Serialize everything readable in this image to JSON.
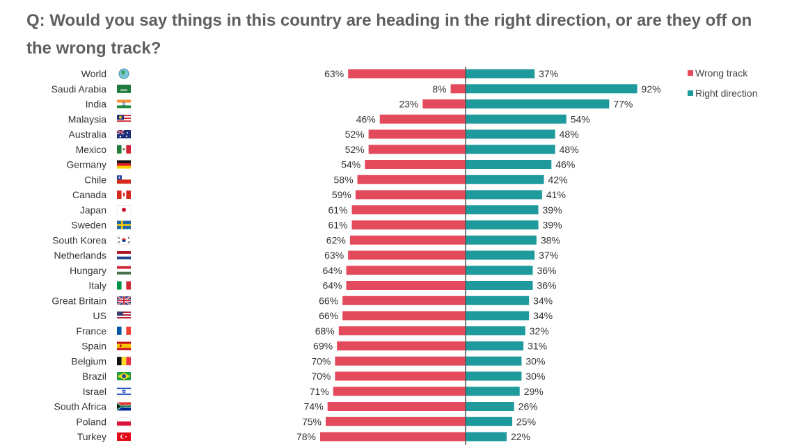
{
  "title": "Q: Would you say things in this country are heading in the right direction, or are they off on the wrong track?",
  "colors": {
    "wrong": "#e34b5c",
    "right": "#1e9a9c",
    "axis": "#555555",
    "text": "#333333"
  },
  "chart_data": {
    "type": "bar",
    "orientation": "horizontal-diverging",
    "title": "Q: Would you say things in this country are heading in the right direction, or are they off on the wrong track?",
    "legend_position": "top-right",
    "value_suffix": "%",
    "categories": [
      "World",
      "Saudi Arabia",
      "India",
      "Malaysia",
      "Australia",
      "Mexico",
      "Germany",
      "Chile",
      "Canada",
      "Japan",
      "Sweden",
      "South Korea",
      "Netherlands",
      "Hungary",
      "Italy",
      "Great Britain",
      "US",
      "France",
      "Spain",
      "Belgium",
      "Brazil",
      "Israel",
      "South Africa",
      "Poland",
      "Turkey"
    ],
    "series": [
      {
        "name": "Wrong track",
        "direction": "left",
        "values": [
          63,
          8,
          23,
          46,
          52,
          52,
          54,
          58,
          59,
          61,
          61,
          62,
          63,
          64,
          64,
          66,
          66,
          68,
          69,
          70,
          70,
          71,
          74,
          75,
          78
        ]
      },
      {
        "name": "Right direction",
        "direction": "right",
        "values": [
          37,
          92,
          77,
          54,
          48,
          48,
          46,
          42,
          41,
          39,
          39,
          38,
          37,
          36,
          36,
          34,
          34,
          32,
          31,
          30,
          30,
          29,
          26,
          25,
          22
        ]
      }
    ],
    "flag_icons": [
      "globe-icon",
      "flag-saudi-arabia-icon",
      "flag-india-icon",
      "flag-malaysia-icon",
      "flag-australia-icon",
      "flag-mexico-icon",
      "flag-germany-icon",
      "flag-chile-icon",
      "flag-canada-icon",
      "flag-japan-icon",
      "flag-sweden-icon",
      "flag-south-korea-icon",
      "flag-netherlands-icon",
      "flag-hungary-icon",
      "flag-italy-icon",
      "flag-great-britain-icon",
      "flag-us-icon",
      "flag-france-icon",
      "flag-spain-icon",
      "flag-belgium-icon",
      "flag-brazil-icon",
      "flag-israel-icon",
      "flag-south-africa-icon",
      "flag-poland-icon",
      "flag-turkey-icon"
    ]
  }
}
